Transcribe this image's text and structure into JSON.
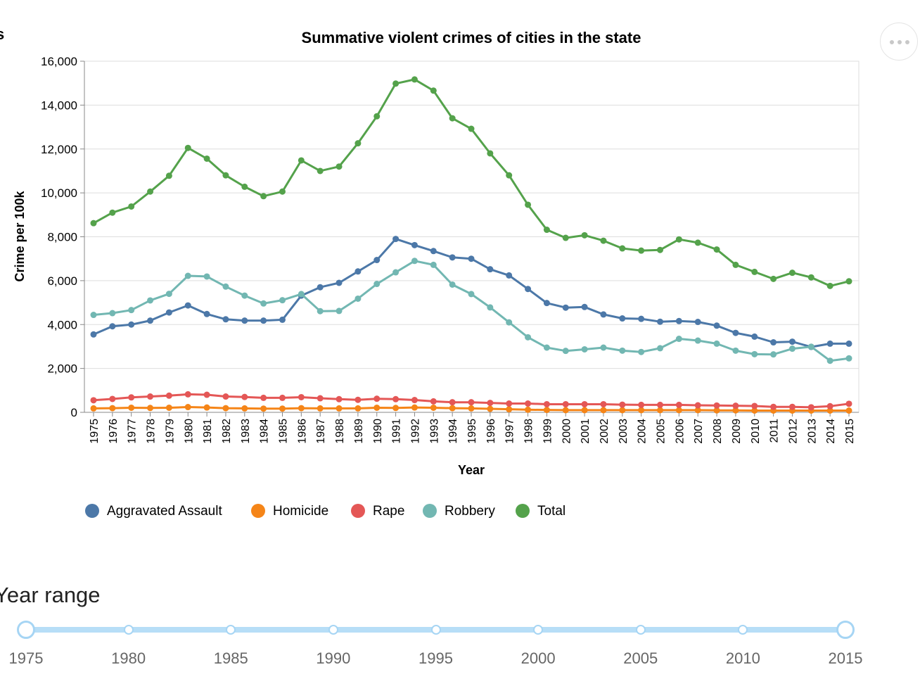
{
  "page": {
    "cut_heading": "s",
    "more_button_icon": "more-horizontal-icon"
  },
  "chart_data": {
    "type": "line",
    "title": "Summative violent crimes of cities in the state",
    "xlabel": "Year",
    "ylabel": "Crime per 100k",
    "ylim": [
      0,
      16000
    ],
    "yticks": [
      0,
      2000,
      4000,
      6000,
      8000,
      10000,
      12000,
      14000,
      16000
    ],
    "ytick_labels": [
      "0",
      "2,000",
      "4,000",
      "6,000",
      "8,000",
      "10,000",
      "12,000",
      "14,000",
      "16,000"
    ],
    "grid": true,
    "legend_position": "bottom-left",
    "categories": [
      "1975",
      "1976",
      "1977",
      "1978",
      "1979",
      "1980",
      "1981",
      "1982",
      "1983",
      "1984",
      "1985",
      "1986",
      "1987",
      "1988",
      "1989",
      "1990",
      "1991",
      "1992",
      "1993",
      "1994",
      "1995",
      "1996",
      "1997",
      "1998",
      "1999",
      "2000",
      "2001",
      "2002",
      "2003",
      "2004",
      "2005",
      "2006",
      "2007",
      "2008",
      "2009",
      "2010",
      "2011",
      "2012",
      "2013",
      "2014",
      "2015"
    ],
    "series": [
      {
        "name": "Aggravated Assault",
        "color": "#4c78a8",
        "values": [
          3550,
          3920,
          4000,
          4180,
          4550,
          4870,
          4480,
          4240,
          4180,
          4180,
          4220,
          5320,
          5700,
          5900,
          6420,
          6940,
          7900,
          7620,
          7350,
          7060,
          7000,
          6520,
          6240,
          5620,
          4980,
          4770,
          4800,
          4460,
          4280,
          4260,
          4130,
          4160,
          4120,
          3950,
          3620,
          3450,
          3190,
          3220,
          2980,
          3130,
          3130
        ]
      },
      {
        "name": "Homicide",
        "color": "#f58518",
        "values": [
          180,
          190,
          210,
          200,
          210,
          240,
          220,
          190,
          180,
          170,
          170,
          190,
          180,
          180,
          180,
          210,
          200,
          220,
          210,
          190,
          180,
          160,
          140,
          120,
          110,
          100,
          100,
          100,
          100,
          100,
          100,
          100,
          100,
          90,
          90,
          80,
          80,
          80,
          80,
          80,
          80
        ]
      },
      {
        "name": "Rape",
        "color": "#e45756",
        "values": [
          550,
          610,
          680,
          720,
          760,
          820,
          800,
          720,
          700,
          660,
          660,
          690,
          640,
          600,
          570,
          620,
          600,
          560,
          500,
          460,
          460,
          430,
          400,
          400,
          370,
          370,
          370,
          370,
          350,
          340,
          340,
          340,
          320,
          310,
          300,
          290,
          250,
          250,
          230,
          280,
          390
        ]
      },
      {
        "name": "Robbery",
        "color": "#72b7b2",
        "values": [
          4440,
          4520,
          4660,
          5100,
          5400,
          6220,
          6190,
          5730,
          5320,
          4960,
          5110,
          5390,
          4610,
          4620,
          5180,
          5850,
          6380,
          6900,
          6720,
          5820,
          5390,
          4780,
          4100,
          3420,
          2950,
          2800,
          2870,
          2950,
          2810,
          2750,
          2920,
          3350,
          3270,
          3130,
          2810,
          2650,
          2640,
          2900,
          2990,
          2350,
          2460
        ]
      },
      {
        "name": "Total",
        "color": "#54a24b",
        "values": [
          8620,
          9100,
          9380,
          10060,
          10780,
          12050,
          11560,
          10800,
          10280,
          9850,
          10060,
          11480,
          11000,
          11200,
          12260,
          13490,
          14980,
          15170,
          14660,
          13400,
          12920,
          11800,
          10800,
          9460,
          8320,
          7950,
          8070,
          7820,
          7470,
          7370,
          7400,
          7880,
          7730,
          7420,
          6720,
          6400,
          6080,
          6360,
          6150,
          5760,
          5970
        ]
      }
    ]
  },
  "slider": {
    "title": "Year range",
    "min": 1975,
    "max": 2015,
    "selected_start": 1975,
    "selected_end": 2015,
    "marks": [
      "1975",
      "1980",
      "1985",
      "1990",
      "1995",
      "2000",
      "2005",
      "2010",
      "2015"
    ]
  }
}
